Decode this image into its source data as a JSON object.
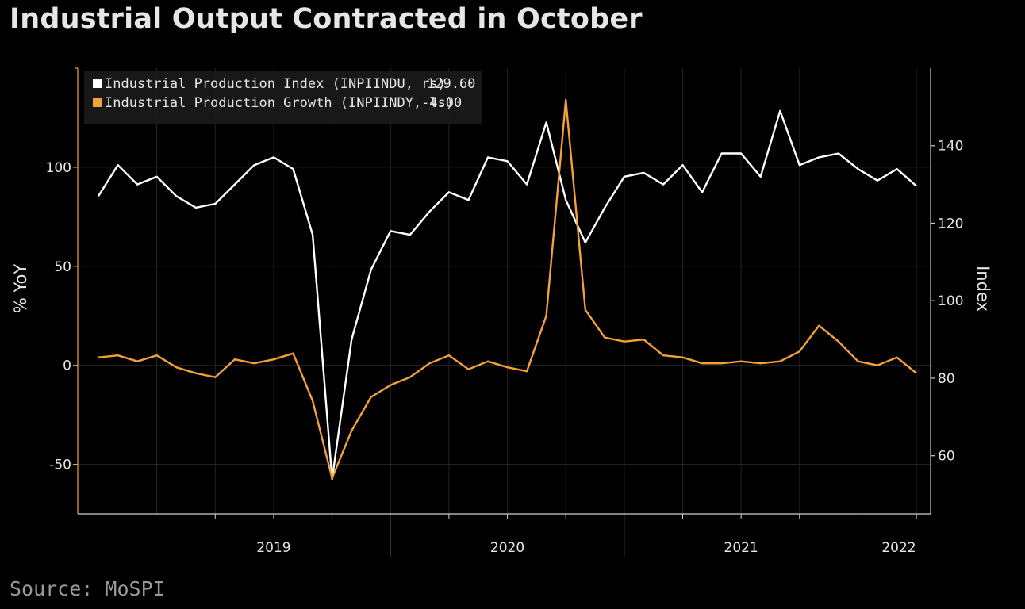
{
  "title": "Industrial Output Contracted in October",
  "source": "Source: MoSPI",
  "colors": {
    "index": "#ffffff",
    "growth": "#f4a13a",
    "grid": "#222222",
    "background": "#000000"
  },
  "chart_data": {
    "type": "line",
    "x_ticks": [
      "2019",
      "2020",
      "2021",
      "2022"
    ],
    "ylabel_left": "% YoY",
    "ylabel_right": "Index",
    "ylim_left": [
      -75,
      150
    ],
    "ylim_right": [
      45,
      160
    ],
    "yticks_left": [
      -50,
      0,
      50,
      100
    ],
    "yticks_right": [
      60,
      80,
      100,
      120,
      140
    ],
    "grid": true,
    "legend": {
      "placement": "top-left",
      "entries": [
        {
          "label": "Industrial Production Index (INPIINDU, rs)",
          "value": "129.60"
        },
        {
          "label": "Industrial Production Growth (INPIINDY, ls)",
          "value": "-4.00"
        }
      ]
    },
    "x_start": "2018-10",
    "series": [
      {
        "name": "Industrial Production Index (INPIINDU, rs)",
        "axis": "right",
        "values": [
          127,
          135,
          130,
          132,
          127,
          124,
          125,
          130,
          135,
          137,
          134,
          117,
          54,
          90,
          108,
          118,
          117,
          123,
          128,
          126,
          137,
          136,
          130,
          146,
          126,
          115,
          124,
          132,
          133,
          130,
          135,
          128,
          138,
          138,
          132,
          149,
          135,
          137,
          138,
          134,
          131,
          134,
          129.6
        ]
      },
      {
        "name": "Industrial Production Growth (INPIINDY, ls)",
        "axis": "left",
        "values": [
          4,
          5,
          2,
          5,
          -1,
          -4,
          -6,
          3,
          1,
          3,
          6,
          -18,
          -57,
          -33,
          -16,
          -10,
          -6,
          1,
          5,
          -2,
          2,
          -1,
          -3,
          25,
          134,
          28,
          14,
          12,
          13,
          5,
          4,
          1,
          1,
          2,
          1,
          2,
          7,
          20,
          12,
          2,
          0,
          4,
          -4
        ]
      }
    ]
  }
}
